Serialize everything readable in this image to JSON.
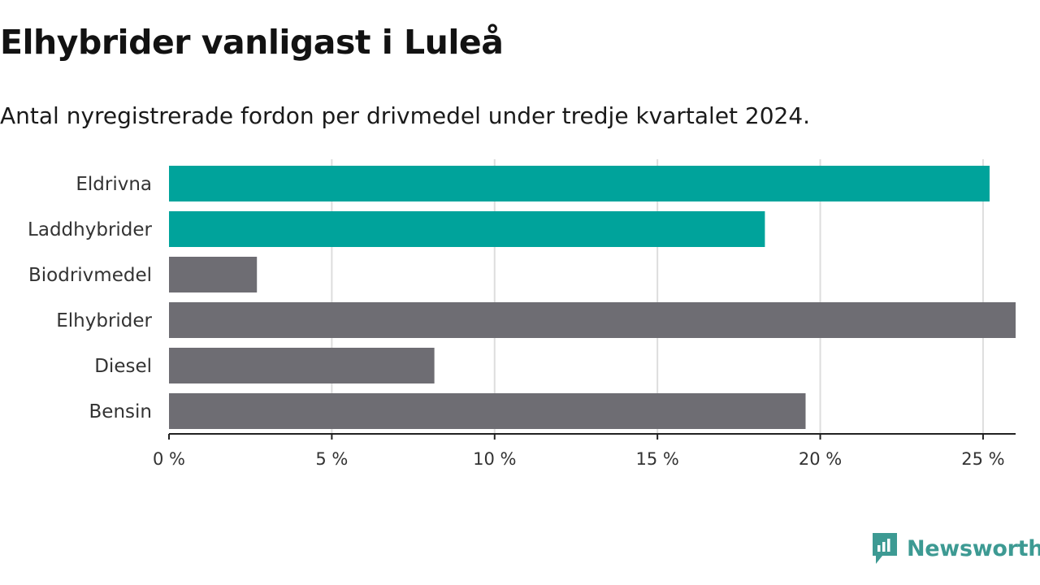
{
  "header": {
    "title": "Elhybrider vanligast i Luleå",
    "subtitle": "Antal nyregistrerade fordon per drivmedel under tredje kvartalet 2024."
  },
  "brand": {
    "name": "Newsworthy",
    "color": "#3d9a93"
  },
  "chart_data": {
    "type": "bar",
    "orientation": "horizontal",
    "title": "Elhybrider vanligast i Luleå",
    "subtitle": "Antal nyregistrerade fordon per drivmedel under tredje kvartalet 2024.",
    "xlabel": "",
    "ylabel": "",
    "x_unit": " %",
    "xlim": [
      0,
      26
    ],
    "ticks": [
      0,
      5,
      10,
      15,
      20,
      25
    ],
    "tick_labels": [
      "0 %",
      "5 %",
      "10 %",
      "15 %",
      "20 %",
      "25 %"
    ],
    "grid": true,
    "categories": [
      "Eldrivna",
      "Laddhybrider",
      "Biodrivmedel",
      "Elhybrider",
      "Diesel",
      "Bensin"
    ],
    "values": [
      25.2,
      18.3,
      2.7,
      26.0,
      8.15,
      19.55
    ],
    "colors": [
      "#00a39b",
      "#00a39b",
      "#6e6d73",
      "#6e6d73",
      "#6e6d73",
      "#6e6d73"
    ]
  }
}
